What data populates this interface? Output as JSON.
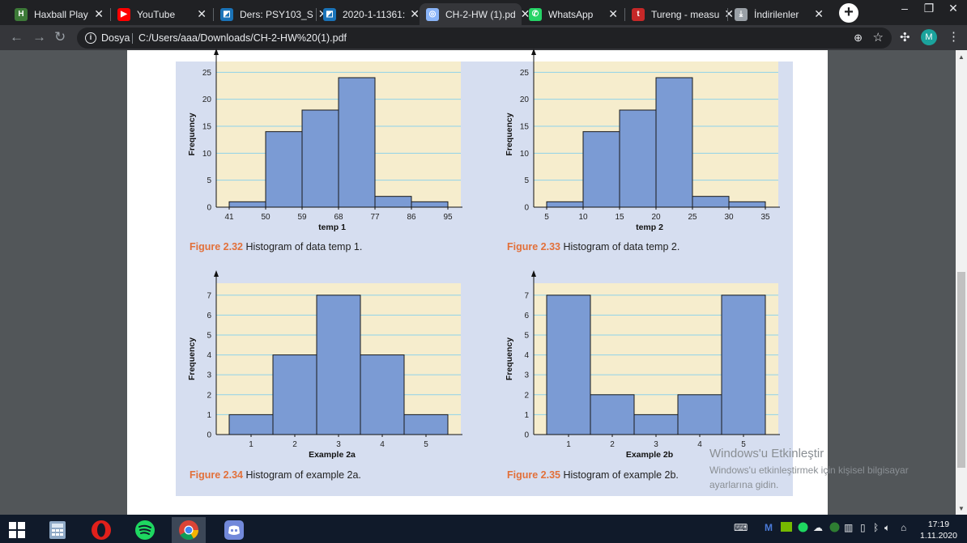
{
  "tabs": [
    {
      "label": "Haxball Play",
      "icon": "haxball-icon",
      "color": "#3d7a38"
    },
    {
      "label": "YouTube",
      "icon": "youtube-icon",
      "color": "#ff0000"
    },
    {
      "label": "Ders: PSY103_S",
      "icon": "moodle-icon",
      "color": "#1a73b8"
    },
    {
      "label": "2020-1-11361:",
      "icon": "moodle-icon",
      "color": "#1a73b8"
    },
    {
      "label": "CH-2-HW (1).pd",
      "icon": "globe-icon",
      "color": "#8ab4f8"
    },
    {
      "label": "WhatsApp",
      "icon": "whatsapp-icon",
      "color": "#25d366"
    },
    {
      "label": "Tureng - measu",
      "icon": "tureng-icon",
      "color": "#c62828"
    },
    {
      "label": "İndirilenler",
      "icon": "download-icon",
      "color": "#9aa0a6"
    }
  ],
  "address": {
    "security_label": "Dosya",
    "url": "C:/Users/aaa/Downloads/CH-2-HW%20(1).pdf"
  },
  "profile_initial": "M",
  "figures": [
    {
      "caption_label": "Figure 2.32",
      "caption_text": "Histogram of data temp 1.",
      "chart_data": {
        "type": "bar",
        "title": "",
        "xlabel": "temp 1",
        "ylabel": "Frequency",
        "ylim": [
          0,
          27
        ],
        "yticks": [
          0,
          5,
          10,
          15,
          20,
          25
        ],
        "bin_edges": [
          41,
          50,
          59,
          68,
          77,
          86,
          95
        ],
        "values": [
          1,
          14,
          18,
          24,
          2,
          1
        ],
        "grid": true
      }
    },
    {
      "caption_label": "Figure 2.33",
      "caption_text": "Histogram of data temp 2.",
      "chart_data": {
        "type": "bar",
        "title": "",
        "xlabel": "temp 2",
        "ylabel": "Frequency",
        "ylim": [
          0,
          27
        ],
        "yticks": [
          0,
          5,
          10,
          15,
          20,
          25
        ],
        "bin_edges": [
          5,
          10,
          15,
          20,
          25,
          30,
          35
        ],
        "values": [
          1,
          14,
          18,
          24,
          2,
          1
        ],
        "grid": true
      }
    },
    {
      "caption_label": "Figure 2.34",
      "caption_text": "Histogram of example 2a.",
      "chart_data": {
        "type": "bar",
        "title": "",
        "xlabel": "Example 2a",
        "ylabel": "Frequency",
        "ylim": [
          0,
          7.6
        ],
        "yticks": [
          0,
          1,
          2,
          3,
          4,
          5,
          6,
          7
        ],
        "categories": [
          "1",
          "2",
          "3",
          "4",
          "5"
        ],
        "values": [
          1,
          4,
          7,
          4,
          1
        ],
        "grid": true
      }
    },
    {
      "caption_label": "Figure 2.35",
      "caption_text": "Histogram of example 2b.",
      "chart_data": {
        "type": "bar",
        "title": "",
        "xlabel": "Example 2b",
        "ylabel": "Frequency",
        "ylim": [
          0,
          7.6
        ],
        "yticks": [
          0,
          1,
          2,
          3,
          4,
          5,
          6,
          7
        ],
        "categories": [
          "1",
          "2",
          "3",
          "4",
          "5"
        ],
        "values": [
          7,
          2,
          1,
          2,
          7
        ],
        "grid": true
      }
    }
  ],
  "chart_colors": {
    "bar": "#7b9bd4",
    "bar_stroke": "#1a1a1a",
    "plot_bg": "#f6edcd",
    "grid": "#8fd2ea",
    "caption_label": "#e2703a"
  },
  "watermark": {
    "title": "Windows'u Etkinleştir",
    "line1": "Windows'u etkinleştirmek için kişisel bilgisayar",
    "line2": "ayarlarına gidin."
  },
  "taskbar": {
    "time": "17:19",
    "date": "1.11.2020"
  }
}
